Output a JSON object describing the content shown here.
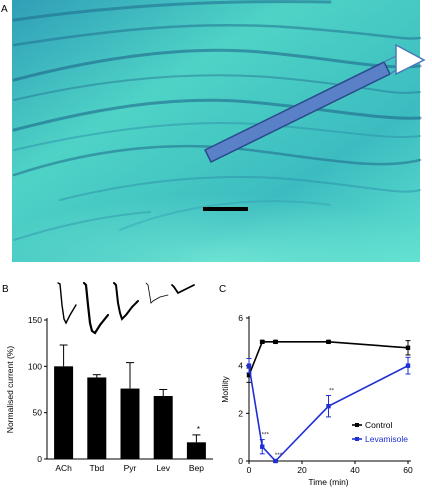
{
  "panel_a": {
    "letter": "A",
    "colors": {
      "tissue_light": "#4ad6c8",
      "tissue_dark": "#1f6f8e",
      "electrode_fill": "#5a80c8",
      "electrode_stroke": "#2a4a8a",
      "scale_bar": "#000000"
    }
  },
  "panel_b": {
    "letter": "B"
  },
  "panel_c": {
    "letter": "C"
  },
  "chart_data": [
    {
      "type": "bar",
      "categories": [
        "ACh",
        "Tbd",
        "Pyr",
        "Lev",
        "Bep"
      ],
      "values": [
        100,
        88,
        76,
        68,
        18
      ],
      "errors": [
        23,
        3,
        28,
        7,
        8
      ],
      "significance": [
        "",
        "",
        "",
        "",
        "*"
      ],
      "title": "",
      "xlabel": "",
      "ylabel": "Normalised current (%)",
      "ylim": [
        0,
        150
      ],
      "yticks": [
        0,
        50,
        100,
        150
      ],
      "bar_color": "#000000",
      "grid": false
    },
    {
      "type": "line",
      "title": "",
      "xlabel": "Time (min)",
      "ylabel": "Motility",
      "xlim": [
        0,
        60
      ],
      "ylim": [
        0,
        6
      ],
      "xticks": [
        0,
        20,
        40,
        60
      ],
      "yticks": [
        0,
        2,
        4,
        6
      ],
      "grid": false,
      "legend_position": "bottom-right",
      "series": [
        {
          "name": "Control",
          "color": "#000000",
          "x": [
            0,
            5,
            10,
            30,
            60
          ],
          "y": [
            3.6,
            5.0,
            5.0,
            5.0,
            4.75
          ],
          "err": [
            0.3,
            0.05,
            0.05,
            0.05,
            0.3
          ],
          "labels": [
            "",
            "",
            "",
            "",
            ""
          ]
        },
        {
          "name": "Levamisole",
          "color": "#1f2fd6",
          "x": [
            0,
            5,
            10,
            30,
            60
          ],
          "y": [
            4.0,
            0.6,
            0.0,
            2.3,
            4.0
          ],
          "err": [
            0.3,
            0.3,
            0.05,
            0.45,
            0.35
          ],
          "labels": [
            "",
            "***",
            "***",
            "**",
            ""
          ]
        }
      ]
    }
  ]
}
